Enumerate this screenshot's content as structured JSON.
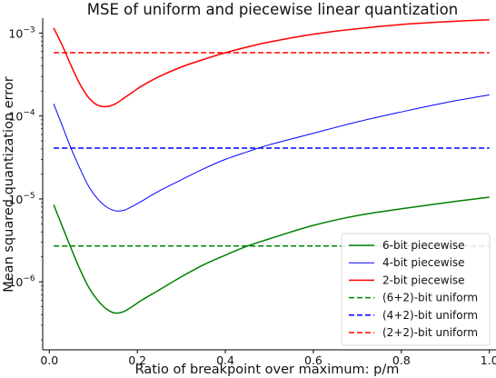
{
  "chart_data": {
    "type": "line",
    "title": "MSE of uniform and piecewise linear quantization",
    "xlabel": "Ratio of breakpoint over maximum: p/m",
    "ylabel": "Mean squared quantization error",
    "xlim": [
      -0.015,
      1.015
    ],
    "ylim_log10": [
      -6.82,
      -2.82
    ],
    "yscale": "log",
    "grid": false,
    "legend_placement": "lower-right",
    "x_ticks": [
      {
        "value": 0.0,
        "label": "0.0"
      },
      {
        "value": 0.2,
        "label": "0.2"
      },
      {
        "value": 0.4,
        "label": "0.4"
      },
      {
        "value": 0.6,
        "label": "0.6"
      },
      {
        "value": 0.8,
        "label": "0.8"
      },
      {
        "value": 1.0,
        "label": "1.0"
      }
    ],
    "y_ticks": [
      {
        "exp": -3,
        "base": "10",
        "sup": "−3"
      },
      {
        "exp": -4,
        "base": "10",
        "sup": "−4"
      },
      {
        "exp": -5,
        "base": "10",
        "sup": "−5"
      },
      {
        "exp": -6,
        "base": "10",
        "sup": "−6"
      }
    ],
    "series": [
      {
        "name": "6-bit piecewise",
        "color": "#008000",
        "dash": "solid",
        "width": 1.5,
        "x": [
          0.01,
          0.03,
          0.05,
          0.07,
          0.09,
          0.11,
          0.13,
          0.15,
          0.17,
          0.19,
          0.21,
          0.25,
          0.3,
          0.35,
          0.4,
          0.45,
          0.5,
          0.6,
          0.7,
          0.8,
          0.9,
          1.0
        ],
        "y": [
          8.5e-06,
          4.6e-06,
          2.5e-06,
          1.4e-06,
          8.5e-07,
          6e-07,
          4.7e-07,
          4.2e-07,
          4.4e-07,
          5.1e-07,
          6e-07,
          8e-07,
          1.15e-06,
          1.6e-06,
          2.1e-06,
          2.7e-06,
          3.3e-06,
          4.8e-06,
          6.3e-06,
          7.6e-06,
          9e-06,
          1.05e-05
        ]
      },
      {
        "name": "4-bit piecewise",
        "color": "#0000ff",
        "dash": "solid",
        "width": 1.0,
        "x": [
          0.01,
          0.03,
          0.05,
          0.07,
          0.09,
          0.11,
          0.13,
          0.15,
          0.17,
          0.19,
          0.21,
          0.25,
          0.3,
          0.35,
          0.4,
          0.45,
          0.5,
          0.6,
          0.7,
          0.8,
          0.9,
          1.0
        ],
        "y": [
          0.00014,
          7.5e-05,
          4e-05,
          2.3e-05,
          1.4e-05,
          1e-05,
          8e-06,
          7.2e-06,
          7.3e-06,
          8.2e-06,
          9.4e-06,
          1.25e-05,
          1.7e-05,
          2.3e-05,
          3e-05,
          3.7e-05,
          4.5e-05,
          6.2e-05,
          8.5e-05,
          0.000112,
          0.000145,
          0.00018
        ]
      },
      {
        "name": "2-bit piecewise",
        "color": "#ff0000",
        "dash": "solid",
        "width": 1.5,
        "x": [
          0.01,
          0.03,
          0.05,
          0.07,
          0.09,
          0.11,
          0.13,
          0.15,
          0.17,
          0.19,
          0.21,
          0.25,
          0.3,
          0.35,
          0.4,
          0.45,
          0.5,
          0.6,
          0.7,
          0.8,
          0.9,
          1.0
        ],
        "y": [
          0.00115,
          0.0007,
          0.0004,
          0.00024,
          0.000165,
          0.000135,
          0.00013,
          0.00014,
          0.000165,
          0.000195,
          0.00023,
          0.0003,
          0.00039,
          0.00048,
          0.00058,
          0.00068,
          0.00078,
          0.00097,
          0.00113,
          0.00127,
          0.00137,
          0.00145
        ]
      },
      {
        "name": "(6+2)-bit uniform",
        "color": "#008000",
        "dash": "dashed",
        "width": 1.5,
        "x": [
          0.01,
          1.0
        ],
        "y": [
          2.7e-06,
          2.7e-06
        ]
      },
      {
        "name": "(4+2)-bit uniform",
        "color": "#0000ff",
        "dash": "dashed",
        "width": 1.5,
        "x": [
          0.01,
          1.0
        ],
        "y": [
          4.1e-05,
          4.1e-05
        ]
      },
      {
        "name": "(2+2)-bit uniform",
        "color": "#ff0000",
        "dash": "dashed",
        "width": 1.5,
        "x": [
          0.01,
          1.0
        ],
        "y": [
          0.00058,
          0.00058
        ]
      }
    ]
  }
}
